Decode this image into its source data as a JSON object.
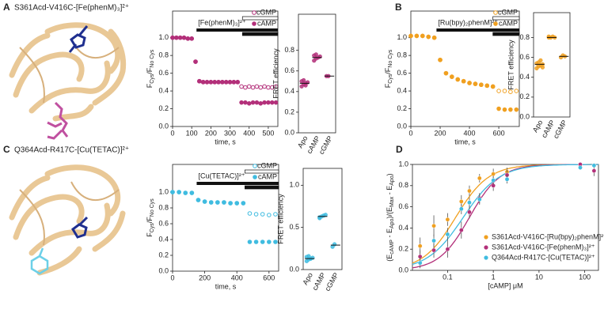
{
  "panel_labels": [
    "A",
    "B",
    "C",
    "D"
  ],
  "structure_titles": [
    "S361Acd-V416C-[Fe(phenM)₃]²⁺",
    "Q364Acd-R417C-[Cu(TETAC)]²⁺"
  ],
  "chart_data": [
    {
      "type": "timecourse",
      "ion": "[Fe(phenM)₃]²⁺",
      "ion_span": [
        125,
        550
      ],
      "ligand_span": [
        365,
        550
      ],
      "xlabel": "time, s",
      "ylabel": [
        "F",
        "Cys",
        "/F",
        "No Cys"
      ],
      "x": [
        0,
        20,
        40,
        60,
        80,
        100,
        120,
        140,
        160,
        180,
        200,
        220,
        240,
        260,
        280,
        300,
        320,
        340,
        360,
        380,
        400,
        420,
        440,
        460,
        480,
        500,
        520,
        540
      ],
      "xlim": [
        0,
        550
      ],
      "xticks": [
        0,
        100,
        200,
        300,
        400,
        500
      ],
      "ylim": [
        0,
        1.3
      ],
      "yticks": [
        {
          "value": 0,
          "label": "0.0"
        },
        {
          "value": 0.2,
          "label": "0.2"
        },
        {
          "value": 0.4,
          "label": "0.4"
        },
        {
          "value": 0.6,
          "label": "0.6"
        },
        {
          "value": 0.8,
          "label": "0.8"
        },
        {
          "value": 1,
          "label": "1.0"
        }
      ],
      "series": [
        {
          "name": "cGMP",
          "color": "#b3307a",
          "marker": "open",
          "values": [
            1.0,
            1.0,
            1.0,
            1.0,
            0.99,
            0.99,
            0.73,
            0.51,
            0.5,
            0.5,
            0.5,
            0.5,
            0.5,
            0.5,
            0.5,
            0.5,
            0.5,
            0.5,
            0.45,
            0.44,
            0.45,
            0.44,
            0.45,
            0.44,
            0.45,
            0.44,
            0.44,
            0.45
          ]
        },
        {
          "name": "cAMP",
          "color": "#b3307a",
          "marker": "filled",
          "values": [
            1.0,
            1.0,
            1.0,
            1.0,
            0.99,
            0.99,
            0.73,
            0.51,
            0.5,
            0.5,
            0.5,
            0.5,
            0.5,
            0.5,
            0.5,
            0.5,
            0.5,
            0.5,
            0.27,
            0.27,
            0.26,
            0.27,
            0.27,
            0.26,
            0.27,
            0.27,
            0.27,
            0.27
          ]
        }
      ]
    },
    {
      "type": "dotplot",
      "ylabel": "FRET efficiency",
      "categories": [
        "Apo",
        "cAMP",
        "cGMP"
      ],
      "color": "#b3307a",
      "values": [
        [
          0.45,
          0.47,
          0.48,
          0.49,
          0.5,
          0.51,
          0.46
        ],
        [
          0.7,
          0.72,
          0.73,
          0.74,
          0.75,
          0.76
        ],
        [
          0.55,
          0.55
        ]
      ],
      "means": [
        0.48,
        0.73,
        0.55
      ],
      "ylim": [
        0,
        1.15
      ],
      "yticks": [
        {
          "value": 0,
          "label": "0.0"
        },
        {
          "value": 0.2,
          "label": "0.2"
        },
        {
          "value": 0.4,
          "label": "0.4"
        },
        {
          "value": 0.6,
          "label": "0.6"
        },
        {
          "value": 0.8,
          "label": "0.8"
        }
      ]
    },
    {
      "type": "timecourse",
      "ion": "[Ru(bpy)₂phenM]²⁺",
      "ion_span": [
        175,
        740
      ],
      "ligand_span": [
        560,
        740
      ],
      "xlabel": "time, s",
      "ylabel": [
        "F",
        "Cys",
        "/F",
        "No Cys"
      ],
      "x": [
        0,
        40,
        80,
        120,
        160,
        200,
        240,
        280,
        320,
        360,
        400,
        440,
        480,
        520,
        560,
        600,
        640,
        680,
        720
      ],
      "xlim": [
        0,
        740
      ],
      "xticks": [
        0,
        200,
        400,
        600
      ],
      "ylim": [
        0,
        1.3
      ],
      "yticks": [
        {
          "value": 0,
          "label": "0.0"
        },
        {
          "value": 0.2,
          "label": "0.2"
        },
        {
          "value": 0.4,
          "label": "0.4"
        },
        {
          "value": 0.6,
          "label": "0.6"
        },
        {
          "value": 0.8,
          "label": "0.8"
        },
        {
          "value": 1,
          "label": "1.0"
        }
      ],
      "series": [
        {
          "name": "cGMP",
          "color": "#f0a020",
          "marker": "open",
          "values": [
            1.02,
            1.02,
            1.02,
            1.01,
            1.0,
            0.75,
            0.6,
            0.56,
            0.53,
            0.51,
            0.49,
            0.48,
            0.47,
            0.46,
            0.45,
            0.4,
            0.4,
            0.39,
            0.4
          ]
        },
        {
          "name": "cAMP",
          "color": "#f0a020",
          "marker": "filled",
          "values": [
            1.02,
            1.02,
            1.02,
            1.01,
            1.0,
            0.75,
            0.6,
            0.56,
            0.53,
            0.51,
            0.49,
            0.48,
            0.47,
            0.46,
            0.45,
            0.2,
            0.19,
            0.19,
            0.19
          ]
        }
      ]
    },
    {
      "type": "dotplot",
      "ylabel": "FRET efficiency",
      "categories": [
        "Apo",
        "cAMP",
        "cGMP"
      ],
      "color": "#f0a020",
      "values": [
        [
          0.49,
          0.51,
          0.52,
          0.53,
          0.54,
          0.55,
          0.57,
          0.5
        ],
        [
          0.8,
          0.8,
          0.81,
          0.8,
          0.81
        ],
        [
          0.6,
          0.62,
          0.61
        ]
      ],
      "means": [
        0.53,
        0.8,
        0.61
      ],
      "ylim": [
        0,
        1.05
      ],
      "yticks": [
        {
          "value": 0,
          "label": "0.0"
        },
        {
          "value": 0.2,
          "label": "0.2"
        },
        {
          "value": 0.4,
          "label": "0.4"
        },
        {
          "value": 0.6,
          "label": "0.6"
        },
        {
          "value": 0.8,
          "label": "0.8"
        }
      ]
    },
    {
      "type": "timecourse",
      "ion": "[Cu(TETAC)]²⁺",
      "ion_span": [
        150,
        660
      ],
      "ligand_span": [
        450,
        660
      ],
      "xlabel": "time, s",
      "ylabel": [
        "F",
        "Cys",
        "/F",
        "No Cys"
      ],
      "x": [
        0,
        40,
        80,
        120,
        160,
        200,
        240,
        280,
        320,
        360,
        400,
        440,
        480,
        520,
        560,
        600,
        640
      ],
      "xlim": [
        0,
        660
      ],
      "xticks": [
        0,
        200,
        400,
        600
      ],
      "ylim": [
        0,
        1.35
      ],
      "yticks": [
        {
          "value": 0,
          "label": "0.0"
        },
        {
          "value": 0.2,
          "label": "0.2"
        },
        {
          "value": 0.4,
          "label": "0.4"
        },
        {
          "value": 0.6,
          "label": "0.6"
        },
        {
          "value": 0.8,
          "label": "0.8"
        },
        {
          "value": 1,
          "label": "1.0"
        }
      ],
      "series": [
        {
          "name": "cGMP",
          "color": "#40bce0",
          "marker": "open",
          "values": [
            1.0,
            1.0,
            0.99,
            0.99,
            0.9,
            0.88,
            0.87,
            0.87,
            0.87,
            0.86,
            0.86,
            0.86,
            0.73,
            0.72,
            0.72,
            0.71,
            0.72
          ]
        },
        {
          "name": "cAMP",
          "color": "#40bce0",
          "marker": "filled",
          "values": [
            1.0,
            1.0,
            0.99,
            0.99,
            0.9,
            0.88,
            0.87,
            0.87,
            0.87,
            0.86,
            0.86,
            0.86,
            0.37,
            0.37,
            0.37,
            0.37,
            0.37
          ]
        }
      ]
    },
    {
      "type": "dotplot",
      "ylabel": "FRET efficiency",
      "categories": [
        "Apo",
        "cAMP",
        "cGMP"
      ],
      "color": "#40bce0",
      "values": [
        [
          0.1,
          0.12,
          0.13,
          0.14,
          0.15,
          0.16,
          0.13
        ],
        [
          0.61,
          0.63,
          0.64,
          0.65,
          0.62
        ],
        [
          0.27,
          0.3
        ]
      ],
      "means": [
        0.13,
        0.63,
        0.29
      ],
      "ylim": [
        0,
        1.2
      ],
      "yticks": [
        {
          "value": 0,
          "label": "0.0"
        },
        {
          "value": 0.5,
          "label": "0.5"
        },
        {
          "value": 1,
          "label": "1.0"
        }
      ]
    },
    {
      "type": "doseresponse",
      "xlabel": "[cAMP] μM",
      "ylabel": [
        "(E",
        "cAMP",
        " - E",
        "Apo",
        ")/(E",
        "Max",
        " - E",
        "Apo",
        ")"
      ],
      "log_x": true,
      "legend": "lower right",
      "x": [
        0.025,
        0.05,
        0.1,
        0.2,
        0.3,
        0.5,
        1,
        2,
        80,
        160
      ],
      "xlim": [
        0.017,
        200
      ],
      "xticks": [
        0.1,
        1,
        10,
        100
      ],
      "ylim": [
        0,
        1
      ],
      "yticks": [
        {
          "value": 0,
          "label": "0.0"
        },
        {
          "value": 0.2,
          "label": "0.2"
        },
        {
          "value": 0.4,
          "label": "0.4"
        },
        {
          "value": 0.6,
          "label": "0.6"
        },
        {
          "value": 0.8,
          "label": "0.8"
        },
        {
          "value": 1,
          "label": "1.0"
        }
      ],
      "series": [
        {
          "name": "S361Acd-V416C-[Ru(bpy)₂phenM]²⁺",
          "color": "#f0a020",
          "ec50": 0.15,
          "hill": 1.2,
          "values": [
            0.23,
            0.42,
            0.48,
            0.65,
            0.75,
            0.87,
            0.91,
            0.93,
            1.0,
            0.99
          ],
          "errors": [
            0.08,
            0.1,
            0.06,
            0.06,
            0.05,
            0.04,
            0.05,
            0.04,
            0.02,
            0.02
          ]
        },
        {
          "name": "S361Acd-V416C-[Fe(phenM)₃]²⁺",
          "color": "#b3307a",
          "ec50": 0.3,
          "hill": 1.3,
          "values": [
            0.13,
            0.19,
            0.2,
            0.38,
            0.55,
            0.68,
            0.8,
            0.9,
            1.0,
            0.94
          ],
          "errors": [
            0.06,
            0.07,
            0.08,
            0.08,
            0.06,
            0.05,
            0.05,
            0.05,
            0.02,
            0.05
          ]
        },
        {
          "name": "Q364Acd-R417C-[Cu(TETAC)]²⁺",
          "color": "#40bce0",
          "ec50": 0.22,
          "hill": 1.1,
          "values": [
            0.07,
            0.28,
            0.34,
            0.58,
            0.64,
            0.67,
            0.85,
            0.86,
            0.97,
            0.99
          ],
          "errors": [
            0.05,
            0.06,
            0.06,
            0.05,
            0.05,
            0.05,
            0.04,
            0.04,
            0.02,
            0.02
          ]
        }
      ]
    }
  ]
}
